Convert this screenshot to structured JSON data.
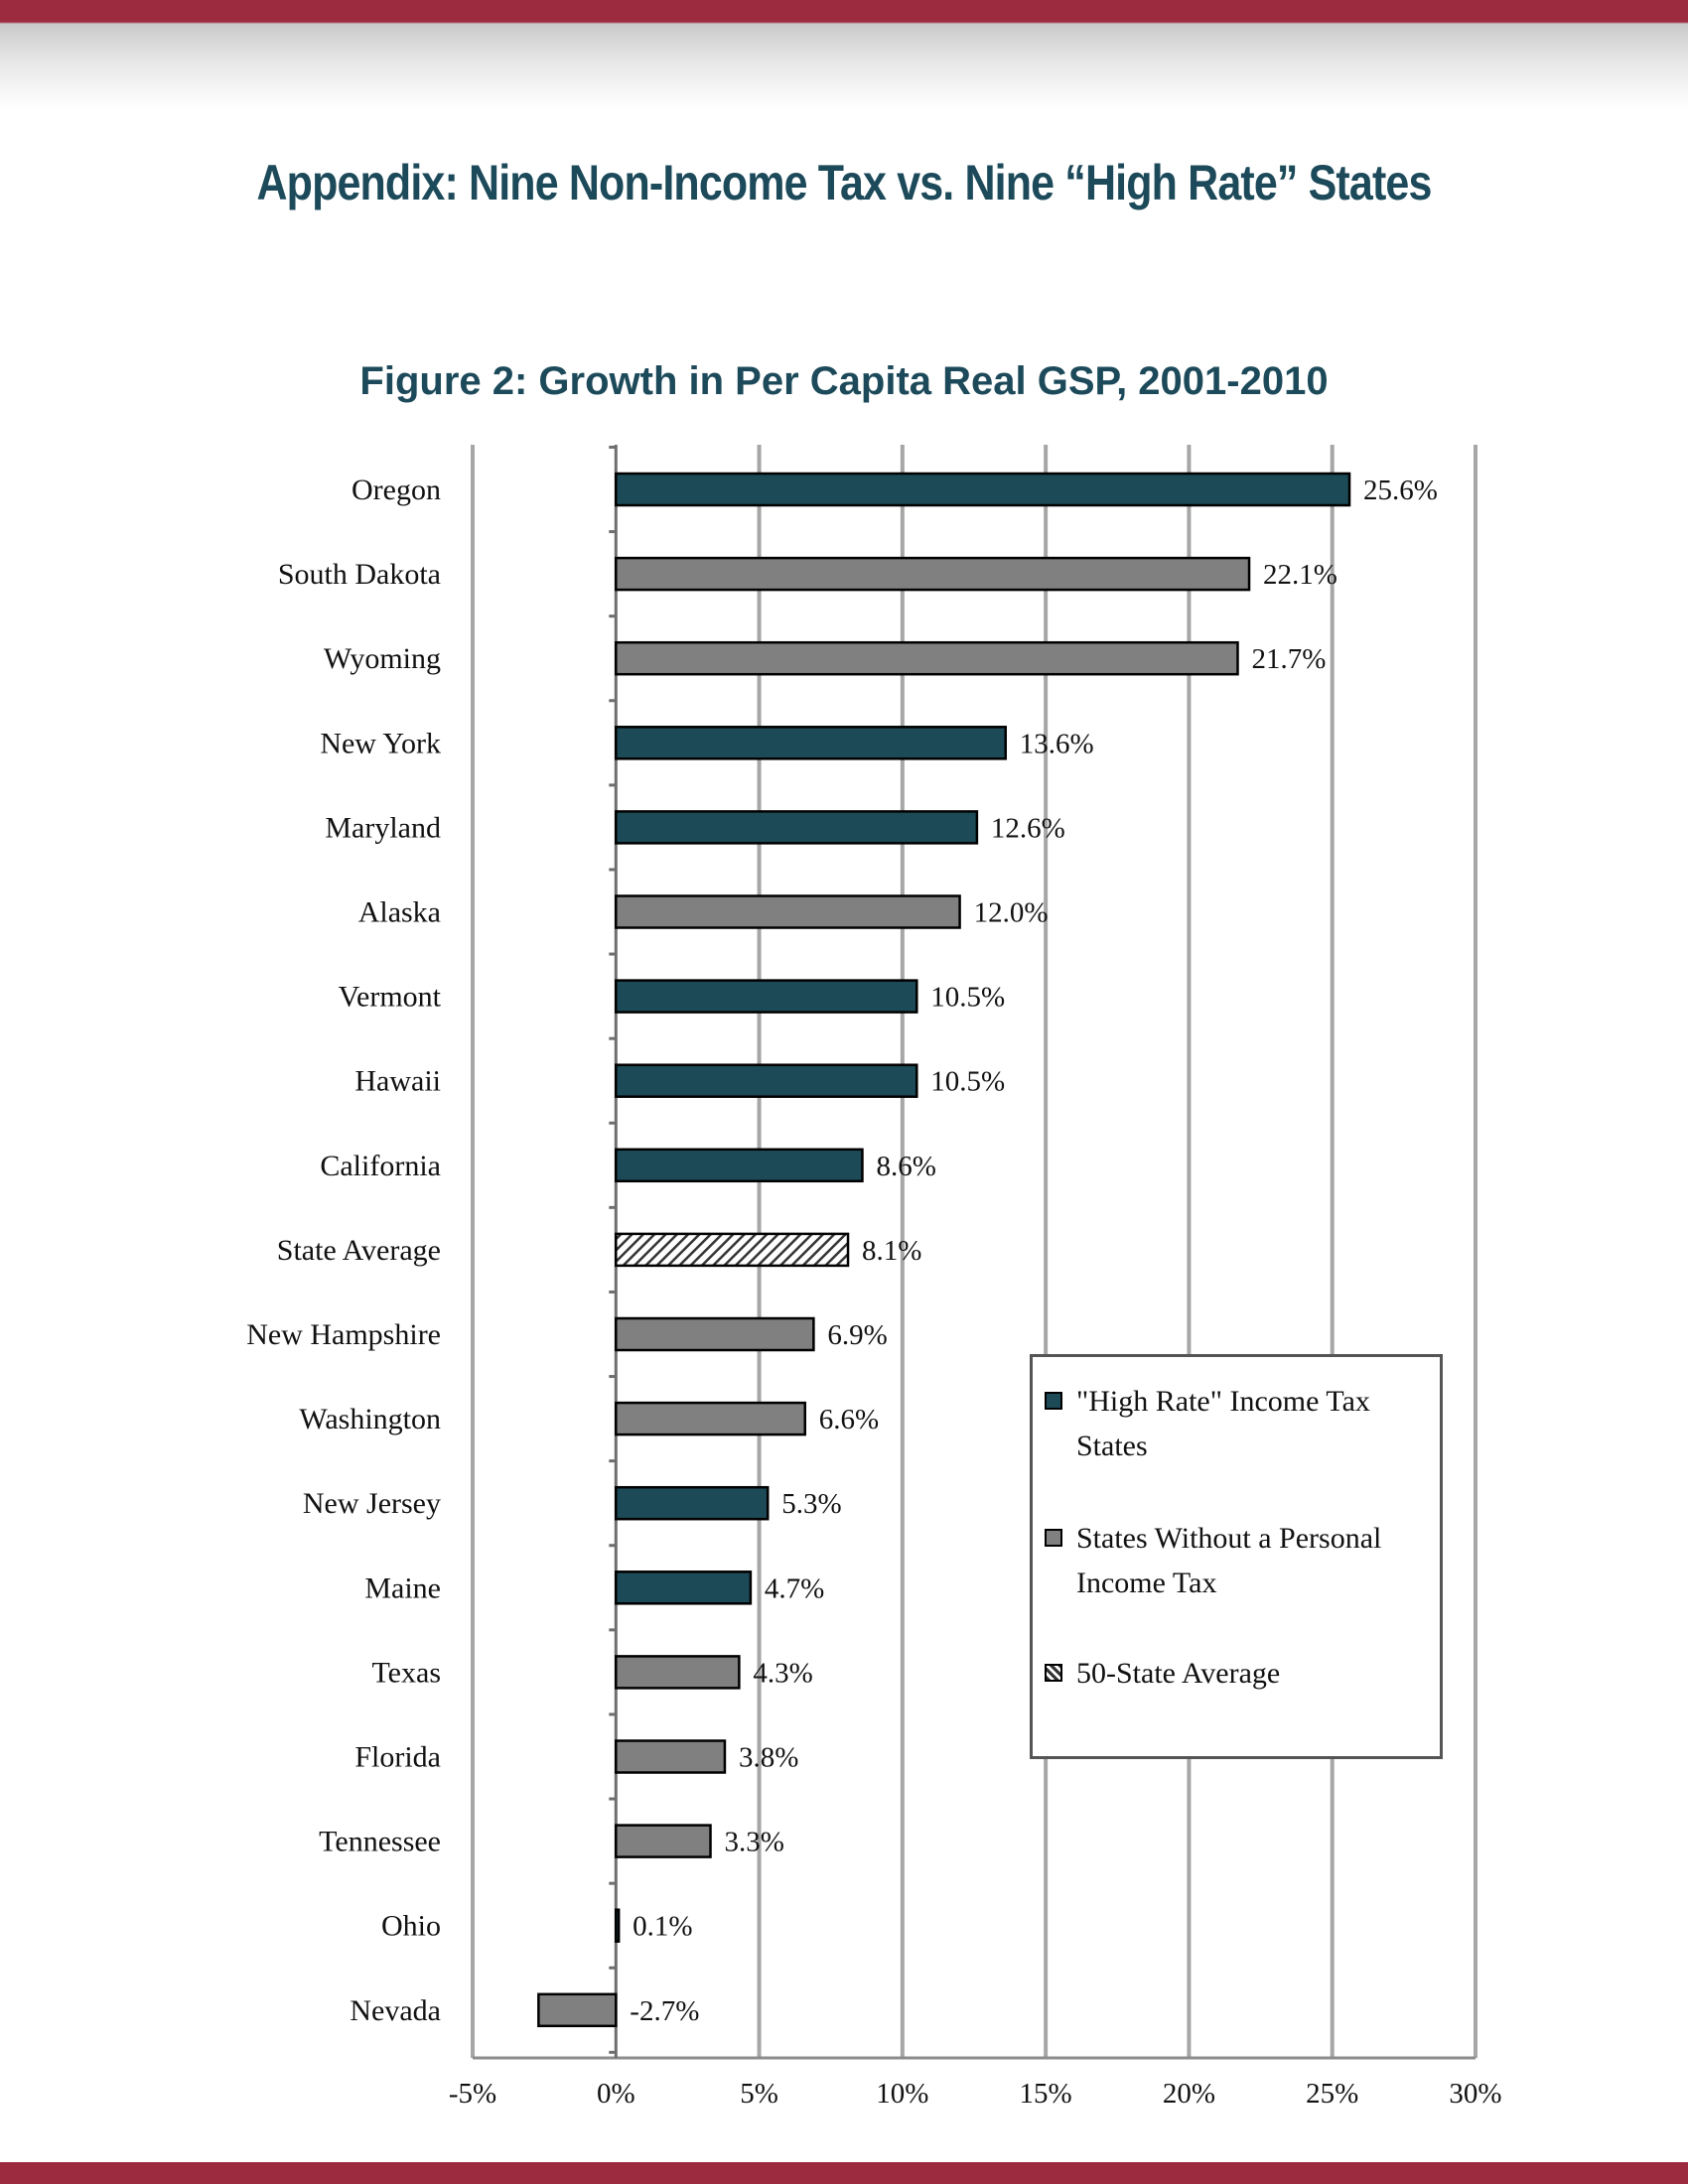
{
  "page": {
    "heading": "Appendix: Nine Non-Income Tax vs. Nine “High Rate” States"
  },
  "chart_data": {
    "type": "bar",
    "orientation": "horizontal",
    "title": "Figure 2: Growth in Per Capita Real GSP, 2001-2010",
    "xlabel": "",
    "ylabel": "",
    "xlim": [
      -5,
      30
    ],
    "x_ticks": [
      -5,
      0,
      5,
      10,
      15,
      20,
      25,
      30
    ],
    "x_tick_labels": [
      "-5%",
      "0%",
      "5%",
      "10%",
      "15%",
      "20%",
      "25%",
      "30%"
    ],
    "grid": "vertical",
    "legend_position": "right",
    "colors": {
      "high_rate": "#1d4a57",
      "no_income_tax": "#808080",
      "average": "hatched"
    },
    "legend": [
      {
        "key": "high_rate",
        "label": "\"High Rate\" Income Tax States"
      },
      {
        "key": "no_income_tax",
        "label": "States Without a Personal Income Tax"
      },
      {
        "key": "average",
        "label": "50-State Average"
      }
    ],
    "bars": [
      {
        "category": "Oregon",
        "value": 25.6,
        "label": "25.6%",
        "group": "high_rate"
      },
      {
        "category": "South Dakota",
        "value": 22.1,
        "label": "22.1%",
        "group": "no_income_tax"
      },
      {
        "category": "Wyoming",
        "value": 21.7,
        "label": "21.7%",
        "group": "no_income_tax"
      },
      {
        "category": "New York",
        "value": 13.6,
        "label": "13.6%",
        "group": "high_rate"
      },
      {
        "category": "Maryland",
        "value": 12.6,
        "label": "12.6%",
        "group": "high_rate"
      },
      {
        "category": "Alaska",
        "value": 12.0,
        "label": "12.0%",
        "group": "no_income_tax"
      },
      {
        "category": "Vermont",
        "value": 10.5,
        "label": "10.5%",
        "group": "high_rate"
      },
      {
        "category": "Hawaii",
        "value": 10.5,
        "label": "10.5%",
        "group": "high_rate"
      },
      {
        "category": "California",
        "value": 8.6,
        "label": "8.6%",
        "group": "high_rate"
      },
      {
        "category": "State Average",
        "value": 8.1,
        "label": "8.1%",
        "group": "average"
      },
      {
        "category": "New Hampshire",
        "value": 6.9,
        "label": "6.9%",
        "group": "no_income_tax"
      },
      {
        "category": "Washington",
        "value": 6.6,
        "label": "6.6%",
        "group": "no_income_tax"
      },
      {
        "category": "New Jersey",
        "value": 5.3,
        "label": "5.3%",
        "group": "high_rate"
      },
      {
        "category": "Maine",
        "value": 4.7,
        "label": "4.7%",
        "group": "high_rate"
      },
      {
        "category": "Texas",
        "value": 4.3,
        "label": "4.3%",
        "group": "no_income_tax"
      },
      {
        "category": "Florida",
        "value": 3.8,
        "label": "3.8%",
        "group": "no_income_tax"
      },
      {
        "category": "Tennessee",
        "value": 3.3,
        "label": "3.3%",
        "group": "no_income_tax"
      },
      {
        "category": "Ohio",
        "value": 0.1,
        "label": "0.1%",
        "group": "high_rate"
      },
      {
        "category": "Nevada",
        "value": -2.7,
        "label": "-2.7%",
        "group": "no_income_tax"
      }
    ]
  }
}
